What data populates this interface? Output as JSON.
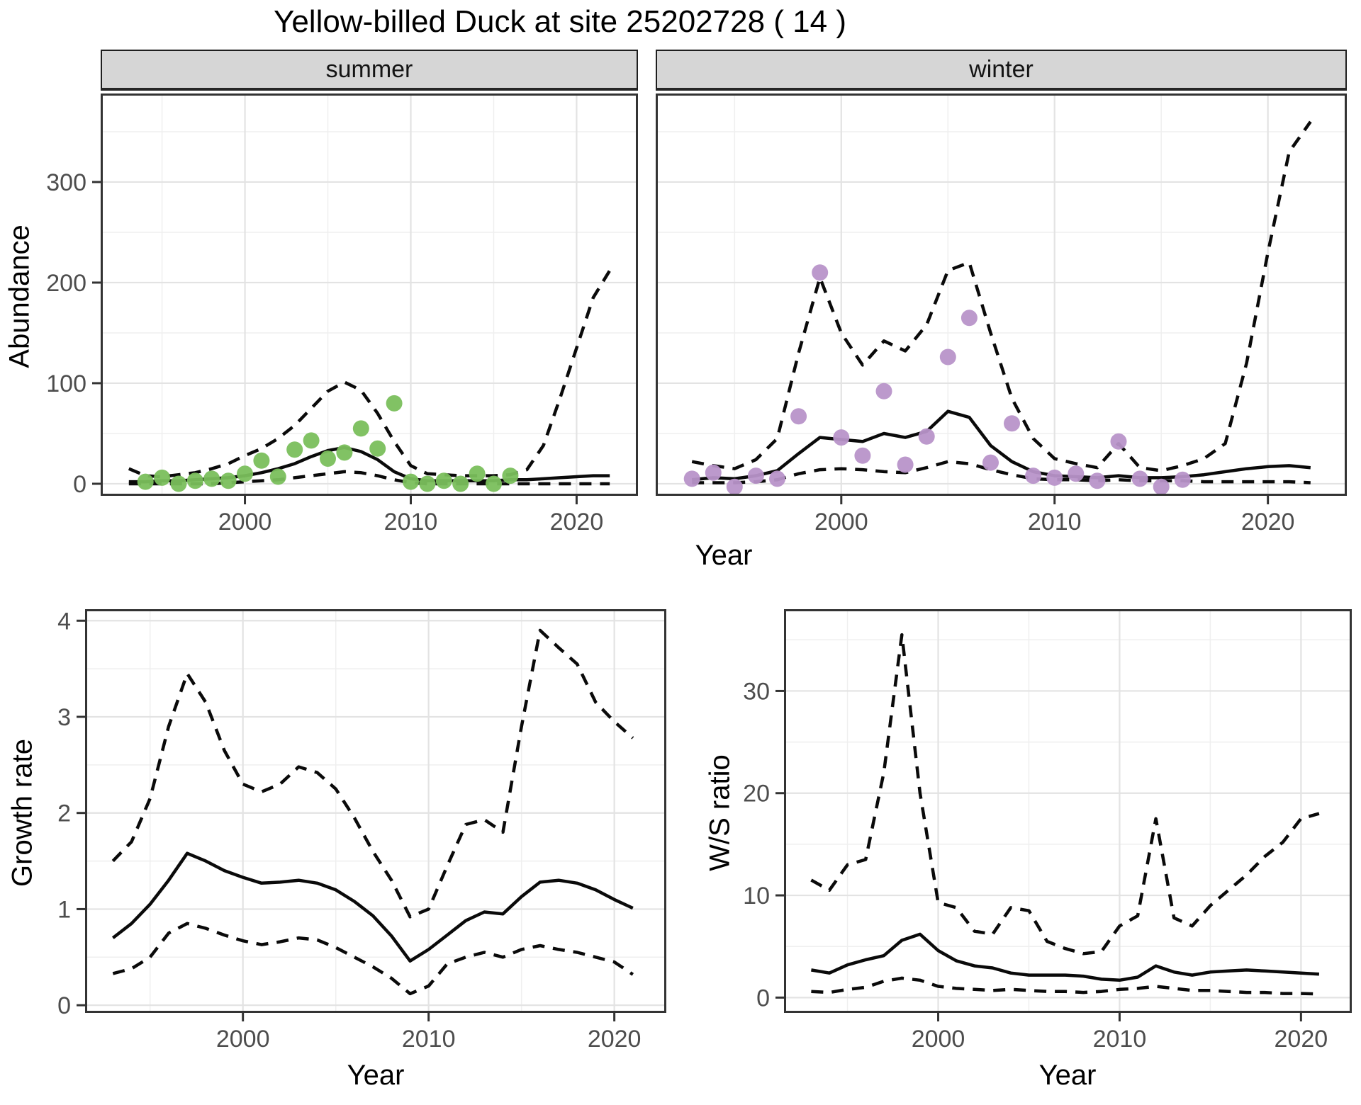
{
  "page": {
    "title": "Yellow-billed Duck at site 25202728 ( 14 )"
  },
  "facets": {
    "summer": "summer",
    "winter": "winter"
  },
  "axes": {
    "abundance_label": "Abundance",
    "year_label": "Year",
    "growth_label": "Growth rate",
    "ws_label": "W/S ratio"
  },
  "colors": {
    "summer_point": "#7abf5c",
    "winter_point": "#b893c9",
    "line": "#0a0a0a",
    "grid_major": "#e3e3e3",
    "grid_minor": "#efefef",
    "panel_border": "#333333",
    "strip_bg": "#d6d6d6",
    "tick_text": "#4d4d4d"
  },
  "chart_data": [
    {
      "id": "abundance-summer",
      "type": "line",
      "facet": "summer",
      "xlabel": "Year",
      "ylabel": "Abundance",
      "xlim": [
        1991.3,
        2023.7
      ],
      "ylim": [
        -12,
        388
      ],
      "x_major_ticks": [
        2000,
        2010,
        2020
      ],
      "x_minor_ticks": [
        1995,
        2005,
        2015
      ],
      "y_major_ticks": [
        0,
        100,
        200,
        300
      ],
      "y_minor_ticks": [
        50,
        150,
        250,
        350
      ],
      "years": [
        1993,
        1994,
        1995,
        1996,
        1997,
        1998,
        1999,
        2000,
        2001,
        2002,
        2003,
        2004,
        2005,
        2006,
        2007,
        2008,
        2009,
        2010,
        2011,
        2012,
        2013,
        2014,
        2015,
        2016,
        2017,
        2018,
        2019,
        2020,
        2021,
        2022
      ],
      "series": [
        {
          "name": "upper_ci",
          "style": "dashed",
          "values": [
            15,
            8,
            7,
            9,
            11,
            15,
            20,
            28,
            35,
            45,
            58,
            75,
            92,
            101,
            93,
            70,
            42,
            18,
            10,
            9,
            8,
            8,
            8,
            9,
            14,
            38,
            85,
            135,
            185,
            212
          ]
        },
        {
          "name": "lower_ci",
          "style": "dashed",
          "values": [
            0,
            0,
            0,
            0,
            0,
            0,
            1,
            2,
            3,
            4,
            6,
            8,
            10,
            12,
            11,
            8,
            4,
            1,
            0,
            0,
            0,
            0,
            0,
            0,
            0,
            0,
            0,
            0,
            0,
            0
          ]
        },
        {
          "name": "median",
          "style": "solid",
          "values": [
            2,
            2,
            3,
            3,
            4,
            5,
            6,
            8,
            11,
            15,
            20,
            27,
            33,
            36,
            32,
            24,
            12,
            5,
            3,
            3,
            3,
            3,
            3,
            4,
            4,
            5,
            6,
            7,
            8,
            8
          ]
        }
      ],
      "points": {
        "name": "observed-counts-summer",
        "color": "#7abf5c",
        "x": [
          1994,
          1995,
          1996,
          1997,
          1998,
          1999,
          2000,
          2001,
          2002,
          2003,
          2004,
          2005,
          2006,
          2007,
          2008,
          2009,
          2010,
          2011,
          2012,
          2013,
          2014,
          2015,
          2016
        ],
        "y": [
          2,
          6,
          0,
          3,
          5,
          3,
          10,
          23,
          7,
          34,
          43,
          25,
          31,
          55,
          35,
          80,
          2,
          0,
          3,
          0,
          10,
          0,
          8
        ]
      }
    },
    {
      "id": "abundance-winter",
      "type": "line",
      "facet": "winter",
      "xlabel": "Year",
      "ylabel": "Abundance",
      "xlim": [
        1991.3,
        2023.7
      ],
      "ylim": [
        -12,
        388
      ],
      "x_major_ticks": [
        2000,
        2010,
        2020
      ],
      "x_minor_ticks": [
        1995,
        2005,
        2015
      ],
      "y_major_ticks": [
        0,
        100,
        200,
        300
      ],
      "y_minor_ticks": [
        50,
        150,
        250,
        350
      ],
      "years": [
        1993,
        1994,
        1995,
        1996,
        1997,
        1998,
        1999,
        2000,
        2001,
        2002,
        2003,
        2004,
        2005,
        2006,
        2007,
        2008,
        2009,
        2010,
        2011,
        2012,
        2013,
        2014,
        2015,
        2016,
        2017,
        2018,
        2019,
        2020,
        2021,
        2022
      ],
      "series": [
        {
          "name": "upper_ci",
          "style": "dashed",
          "values": [
            22,
            18,
            15,
            24,
            45,
            130,
            205,
            150,
            118,
            142,
            132,
            158,
            212,
            220,
            150,
            85,
            45,
            25,
            20,
            16,
            40,
            16,
            13,
            18,
            25,
            40,
            120,
            230,
            330,
            360
          ]
        },
        {
          "name": "lower_ci",
          "style": "dashed",
          "values": [
            1,
            1,
            1,
            2,
            4,
            10,
            14,
            15,
            14,
            12,
            11,
            16,
            22,
            20,
            14,
            9,
            5,
            4,
            4,
            3,
            4,
            3,
            3,
            3,
            2,
            2,
            2,
            2,
            2,
            1
          ]
        },
        {
          "name": "median",
          "style": "solid",
          "values": [
            4,
            6,
            5,
            8,
            13,
            30,
            46,
            44,
            42,
            50,
            46,
            52,
            72,
            66,
            38,
            22,
            12,
            8,
            7,
            6,
            8,
            6,
            6,
            7,
            9,
            12,
            15,
            17,
            18,
            16
          ]
        }
      ],
      "points": {
        "name": "observed-counts-winter",
        "color": "#b893c9",
        "x": [
          1993,
          1994,
          1995,
          1996,
          1997,
          1998,
          1999,
          2000,
          2001,
          2002,
          2003,
          2004,
          2005,
          2006,
          2007,
          2008,
          2009,
          2010,
          2011,
          2012,
          2013,
          2014,
          2015,
          2016
        ],
        "y": [
          5,
          11,
          -3,
          8,
          5,
          67,
          210,
          46,
          28,
          92,
          19,
          47,
          126,
          165,
          21,
          60,
          8,
          6,
          10,
          3,
          42,
          5,
          -3,
          4
        ]
      }
    },
    {
      "id": "growth-rate",
      "type": "line",
      "xlabel": "Year",
      "ylabel": "Growth rate",
      "xlim": [
        1991.5,
        2022.8
      ],
      "ylim": [
        -0.08,
        4.12
      ],
      "x_major_ticks": [
        2000,
        2010,
        2020
      ],
      "x_minor_ticks": [
        1995,
        2005,
        2015
      ],
      "y_major_ticks": [
        0,
        1,
        2,
        3,
        4
      ],
      "y_minor_ticks": [
        0.5,
        1.5,
        2.5,
        3.5
      ],
      "years": [
        1993,
        1994,
        1995,
        1996,
        1997,
        1998,
        1999,
        2000,
        2001,
        2002,
        2003,
        2004,
        2005,
        2006,
        2007,
        2008,
        2009,
        2010,
        2011,
        2012,
        2013,
        2014,
        2015,
        2016,
        2017,
        2018,
        2019,
        2020,
        2021
      ],
      "series": [
        {
          "name": "upper_ci",
          "style": "dashed",
          "values": [
            1.5,
            1.7,
            2.15,
            2.9,
            3.45,
            3.15,
            2.65,
            2.3,
            2.22,
            2.3,
            2.48,
            2.42,
            2.25,
            1.95,
            1.6,
            1.3,
            0.92,
            1.0,
            1.45,
            1.88,
            1.93,
            1.8,
            2.9,
            3.9,
            3.72,
            3.55,
            3.15,
            2.95,
            2.78
          ]
        },
        {
          "name": "lower_ci",
          "style": "dashed",
          "values": [
            0.33,
            0.38,
            0.5,
            0.75,
            0.85,
            0.8,
            0.73,
            0.67,
            0.63,
            0.66,
            0.7,
            0.68,
            0.6,
            0.5,
            0.4,
            0.28,
            0.12,
            0.2,
            0.43,
            0.5,
            0.55,
            0.5,
            0.58,
            0.62,
            0.58,
            0.55,
            0.5,
            0.45,
            0.32
          ]
        },
        {
          "name": "median",
          "style": "solid",
          "values": [
            0.7,
            0.85,
            1.05,
            1.3,
            1.58,
            1.5,
            1.4,
            1.33,
            1.27,
            1.28,
            1.3,
            1.27,
            1.2,
            1.08,
            0.93,
            0.72,
            0.46,
            0.58,
            0.73,
            0.88,
            0.97,
            0.95,
            1.13,
            1.28,
            1.3,
            1.27,
            1.2,
            1.1,
            1.01
          ]
        }
      ]
    },
    {
      "id": "ws-ratio",
      "type": "line",
      "xlabel": "Year",
      "ylabel": "W/S ratio",
      "xlim": [
        1991.5,
        2022.8
      ],
      "ylim": [
        -1.5,
        38.0
      ],
      "x_major_ticks": [
        2000,
        2010,
        2020
      ],
      "x_minor_ticks": [
        1995,
        2005,
        2015
      ],
      "y_major_ticks": [
        0,
        10,
        20,
        30
      ],
      "y_minor_ticks": [
        5,
        15,
        25,
        35
      ],
      "years": [
        1993,
        1994,
        1995,
        1996,
        1997,
        1998,
        1999,
        2000,
        2001,
        2002,
        2003,
        2004,
        2005,
        2006,
        2007,
        2008,
        2009,
        2010,
        2011,
        2012,
        2013,
        2014,
        2015,
        2016,
        2017,
        2018,
        2019,
        2020,
        2021
      ],
      "series": [
        {
          "name": "upper_ci",
          "style": "dashed",
          "values": [
            11.5,
            10.5,
            13.0,
            13.5,
            22.0,
            35.5,
            20.0,
            9.3,
            8.8,
            6.5,
            6.2,
            8.8,
            8.5,
            5.5,
            4.8,
            4.3,
            4.5,
            7.0,
            8.0,
            17.5,
            7.8,
            7.0,
            9.0,
            10.5,
            12.0,
            13.8,
            15.2,
            17.5,
            18.0
          ]
        },
        {
          "name": "lower_ci",
          "style": "dashed",
          "values": [
            0.6,
            0.5,
            0.8,
            1.0,
            1.6,
            1.9,
            1.7,
            1.1,
            0.9,
            0.8,
            0.7,
            0.8,
            0.7,
            0.6,
            0.6,
            0.5,
            0.6,
            0.8,
            0.9,
            1.1,
            0.9,
            0.7,
            0.7,
            0.6,
            0.5,
            0.5,
            0.4,
            0.4,
            0.35
          ]
        },
        {
          "name": "median",
          "style": "solid",
          "values": [
            2.7,
            2.4,
            3.2,
            3.7,
            4.1,
            5.6,
            6.2,
            4.6,
            3.6,
            3.1,
            2.9,
            2.4,
            2.2,
            2.2,
            2.2,
            2.1,
            1.8,
            1.7,
            2.0,
            3.1,
            2.5,
            2.2,
            2.5,
            2.6,
            2.7,
            2.6,
            2.5,
            2.4,
            2.3
          ]
        }
      ]
    }
  ]
}
